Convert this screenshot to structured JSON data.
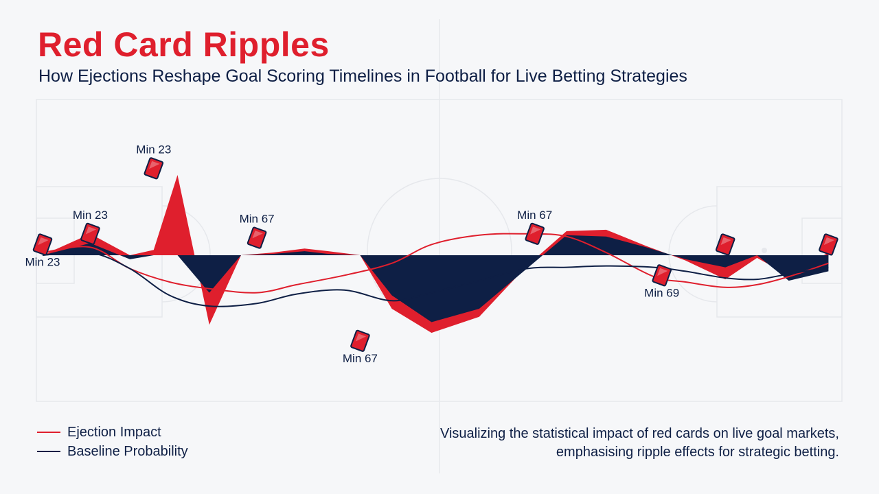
{
  "title": "Red Card Ripples",
  "subtitle": "How Ejections Reshape Goal Scoring Timelines in Football for Live Betting Strategies",
  "caption": "Visualizing the statistical impact of red cards on live goal markets, emphasising ripple effects for strategic betting.",
  "colors": {
    "ejection": "#df1f2d",
    "baseline": "#0e1f45",
    "background": "#f6f7f9",
    "pitch_lines": "#e6e8ec"
  },
  "legend": [
    {
      "label": "Ejection Impact",
      "series": "ejection"
    },
    {
      "label": "Baseline Probability",
      "series": "baseline"
    }
  ],
  "chart_data": {
    "type": "area",
    "x_range": [
      0,
      100
    ],
    "y_range": [
      -10,
      10
    ],
    "series": [
      {
        "name": "Ejection Impact",
        "x": [
          0,
          6,
          11,
          14,
          17,
          21,
          25,
          29,
          33,
          36,
          40,
          44,
          49,
          55,
          61,
          66,
          71,
          76,
          81,
          86,
          90,
          94,
          99
        ],
        "values": [
          0,
          1.6,
          0,
          0.4,
          6.0,
          -5.2,
          0,
          0.2,
          0.5,
          0.3,
          0,
          -4.0,
          -5.8,
          -4.6,
          -0.8,
          1.8,
          1.9,
          0.7,
          -0.4,
          -1.8,
          -0.2,
          -1.5,
          0.2
        ]
      },
      {
        "name": "Baseline Probability",
        "x": [
          0,
          6,
          11,
          14,
          17,
          21,
          25,
          29,
          33,
          36,
          40,
          44,
          49,
          55,
          61,
          66,
          71,
          76,
          81,
          86,
          90,
          94,
          99
        ],
        "values": [
          0,
          0.9,
          -0.3,
          0,
          0,
          -2.8,
          0,
          0.1,
          0.3,
          0.1,
          0,
          -3.0,
          -5.0,
          -4.0,
          -1.0,
          1.5,
          1.4,
          0.6,
          -0.3,
          -0.9,
          0,
          -1.9,
          -1.2
        ]
      }
    ],
    "ejection_line": {
      "x": [
        0,
        6,
        11,
        16,
        21,
        27,
        32,
        38,
        44,
        49,
        55,
        61,
        66,
        71,
        77,
        81,
        86,
        90,
        94,
        99
      ],
      "values": [
        0.2,
        0.6,
        -1.0,
        -2.0,
        -2.5,
        -2.8,
        -2.2,
        -1.5,
        -0.6,
        0.8,
        1.5,
        1.6,
        1.4,
        0.2,
        -1.6,
        -2.0,
        -2.4,
        -2.2,
        -1.6,
        -0.6
      ]
    },
    "baseline_line": {
      "x": [
        0,
        6,
        11,
        16,
        21,
        27,
        32,
        38,
        44,
        49,
        55,
        61,
        66,
        71,
        77,
        81,
        86,
        90,
        94,
        99
      ],
      "values": [
        0,
        0.2,
        -1.0,
        -3.0,
        -3.8,
        -3.6,
        -2.9,
        -2.6,
        -3.4,
        -2.8,
        -1.9,
        -1.0,
        -0.9,
        -0.8,
        -0.9,
        -1.2,
        -1.7,
        -1.8,
        -1.4,
        -0.9
      ]
    },
    "markers": [
      {
        "label": "Min 23",
        "x": 0,
        "y": 0.8,
        "label_position": "below"
      },
      {
        "label": "Min 23",
        "x": 6,
        "y": 1.6,
        "label_position": "above"
      },
      {
        "label": "Min 23",
        "x": 14,
        "y": 6.5,
        "label_position": "above"
      },
      {
        "label": "Min 67",
        "x": 27,
        "y": 1.3,
        "label_position": "above"
      },
      {
        "label": "Min 67",
        "x": 40,
        "y": -6.4,
        "label_position": "below"
      },
      {
        "label": "Min 67",
        "x": 62,
        "y": 1.6,
        "label_position": "above"
      },
      {
        "label": "Min 69",
        "x": 78,
        "y": -1.5,
        "label_position": "below"
      },
      {
        "label": "",
        "x": 86,
        "y": 0.8,
        "label_position": "none"
      },
      {
        "label": "",
        "x": 99,
        "y": 0.8,
        "label_position": "none"
      }
    ]
  }
}
